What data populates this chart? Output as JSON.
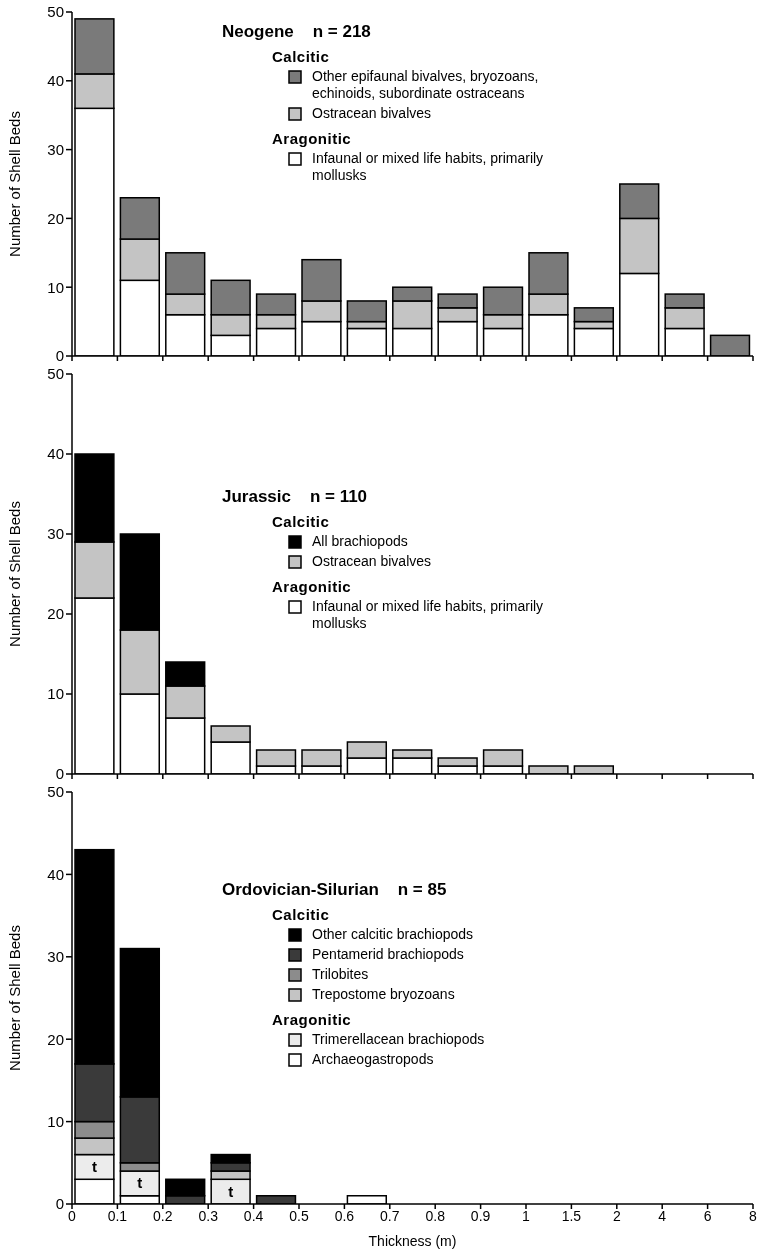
{
  "chart_data": [
    {
      "type": "bar",
      "title": "Neogene    n = 218",
      "ylabel": "Number of Shell Beds",
      "stacked": true,
      "categories": [
        null,
        null,
        null,
        null,
        null,
        null,
        null,
        null,
        null,
        null,
        null,
        null,
        null,
        null,
        null
      ],
      "series": [
        {
          "name": "Infaunal or mixed life habits, primarily mollusks",
          "color": "#ffffff",
          "values": [
            36,
            11,
            6,
            3,
            4,
            5,
            4,
            4,
            5,
            4,
            6,
            4,
            12,
            4,
            0
          ]
        },
        {
          "name": "Ostracean bivalves",
          "color": "#c4c4c4",
          "values": [
            5,
            6,
            3,
            3,
            2,
            3,
            1,
            4,
            2,
            2,
            3,
            1,
            8,
            3,
            0
          ]
        },
        {
          "name": "Other epifaunal bivalves, bryozoans, echinoids, subordinate ostraceans",
          "color": "#7a7a7a",
          "values": [
            8,
            6,
            6,
            5,
            3,
            6,
            3,
            2,
            2,
            4,
            6,
            2,
            5,
            2,
            3
          ]
        }
      ],
      "ylim": [
        0,
        50
      ],
      "yticks": [
        0,
        10,
        20,
        30,
        40,
        50
      ],
      "legend": "top right",
      "annotations": [
        "Calcitic",
        "Aragonitic"
      ]
    },
    {
      "type": "bar",
      "title": "Jurassic    n = 110",
      "ylabel": "Number of Shell Beds",
      "stacked": true,
      "categories": [
        null,
        null,
        null,
        null,
        null,
        null,
        null,
        null,
        null,
        null,
        null,
        null,
        null,
        null,
        null
      ],
      "series": [
        {
          "name": "Infaunal or mixed life habits, primarily mollusks",
          "color": "#ffffff",
          "values": [
            22,
            10,
            7,
            4,
            1,
            1,
            2,
            2,
            1,
            1,
            0,
            0,
            0,
            0,
            0
          ]
        },
        {
          "name": "Ostracean bivalves",
          "color": "#c4c4c4",
          "values": [
            7,
            8,
            4,
            2,
            2,
            2,
            2,
            1,
            1,
            2,
            1,
            1,
            0,
            0,
            0
          ]
        },
        {
          "name": "All brachiopods",
          "color": "#000000",
          "values": [
            11,
            12,
            3,
            0,
            0,
            0,
            0,
            0,
            0,
            0,
            0,
            0,
            0,
            0,
            0
          ]
        }
      ],
      "ylim": [
        0,
        50
      ],
      "yticks": [
        0,
        10,
        20,
        30,
        40,
        50
      ],
      "legend": "right",
      "annotations": [
        "Calcitic",
        "Aragonitic"
      ]
    },
    {
      "type": "bar",
      "title": "Ordovician-Silurian    n = 85",
      "xlabel": "Thickness (m)",
      "ylabel": "Number of Shell Beds",
      "stacked": true,
      "categories": [
        null,
        null,
        null,
        null,
        null,
        null,
        null,
        null,
        null,
        null,
        null,
        null,
        null,
        null,
        null
      ],
      "series": [
        {
          "name": "Archaeogastropods",
          "color": "#ffffff",
          "values": [
            3,
            1,
            0,
            0,
            0,
            0,
            1,
            0,
            0,
            0,
            0,
            0,
            0,
            0,
            0
          ]
        },
        {
          "name": "Trimerellacean brachiopods",
          "color": "#ececec",
          "values": [
            3,
            3,
            0,
            3,
            0,
            0,
            0,
            0,
            0,
            0,
            0,
            0,
            0,
            0,
            0
          ],
          "value_labels": [
            "t",
            "t",
            null,
            "t",
            null,
            null,
            null,
            null,
            null,
            null,
            null,
            null,
            null,
            null,
            null
          ]
        },
        {
          "name": "Trepostome bryozoans",
          "color": "#c4c4c4",
          "values": [
            2,
            0,
            0,
            1,
            0,
            0,
            0,
            0,
            0,
            0,
            0,
            0,
            0,
            0,
            0
          ]
        },
        {
          "name": "Trilobites",
          "color": "#8c8c8c",
          "values": [
            2,
            1,
            0,
            0,
            0,
            0,
            0,
            0,
            0,
            0,
            0,
            0,
            0,
            0,
            0
          ]
        },
        {
          "name": "Pentamerid brachiopods",
          "color": "#3a3a3a",
          "values": [
            7,
            8,
            1,
            1,
            1,
            0,
            0,
            0,
            0,
            0,
            0,
            0,
            0,
            0,
            0
          ]
        },
        {
          "name": "Other calcitic brachiopods",
          "color": "#000000",
          "values": [
            26,
            18,
            2,
            1,
            0,
            0,
            0,
            0,
            0,
            0,
            0,
            0,
            0,
            0,
            0
          ]
        }
      ],
      "ylim": [
        0,
        50
      ],
      "yticks": [
        0,
        10,
        20,
        30,
        40,
        50
      ],
      "legend": "right",
      "annotations": [
        "Calcitic",
        "Aragonitic",
        "0",
        "0.1",
        "0.2",
        "0.3",
        "0.4",
        "0.5",
        "0.6",
        "0.7",
        "0.8",
        "0.9",
        "1",
        "1.5",
        "2",
        "4",
        "6",
        "8"
      ]
    }
  ]
}
